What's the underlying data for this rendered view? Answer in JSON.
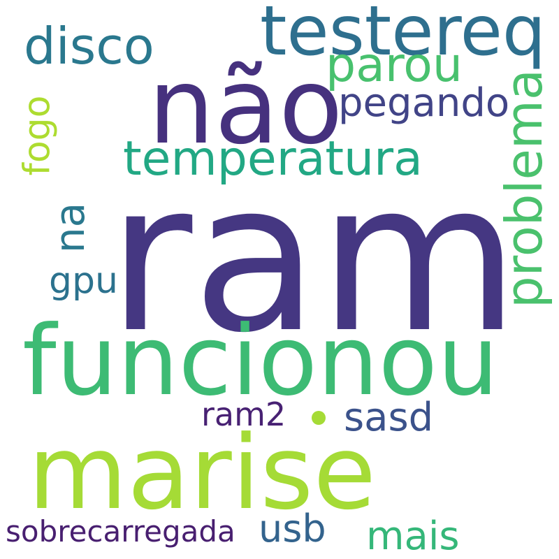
{
  "words": {
    "ram": {
      "text": "ram",
      "color": "#453782"
    },
    "funcionou": {
      "text": "funcionou",
      "color": "#3dbb74"
    },
    "marise": {
      "text": "marise",
      "color": "#a5db36"
    },
    "nao": {
      "text": "não",
      "color": "#46317e"
    },
    "testereq": {
      "text": "testereq",
      "color": "#2e6f8e"
    },
    "disco": {
      "text": "disco",
      "color": "#2a788e"
    },
    "parou": {
      "text": "parou",
      "color": "#48c16e"
    },
    "pegando": {
      "text": "pegando",
      "color": "#414487"
    },
    "temperatura": {
      "text": "temperatura",
      "color": "#22a884"
    },
    "problema": {
      "text": "problema",
      "color": "#4ac16d"
    },
    "fogo": {
      "text": "fogo",
      "color": "#addc30"
    },
    "na": {
      "text": "na",
      "color": "#2a788e"
    },
    "gpu": {
      "text": "gpu",
      "color": "#2c728e"
    },
    "ram2": {
      "text": "ram2",
      "color": "#482173"
    },
    "sasd": {
      "text": "sasd",
      "color": "#3b528b"
    },
    "sobrecarregada": {
      "text": "sobrecarregada",
      "color": "#481f70"
    },
    "usb": {
      "text": "usb",
      "color": "#33638d"
    },
    "mais": {
      "text": "mais",
      "color": "#35b779"
    }
  },
  "dot_color": "#a5db36"
}
